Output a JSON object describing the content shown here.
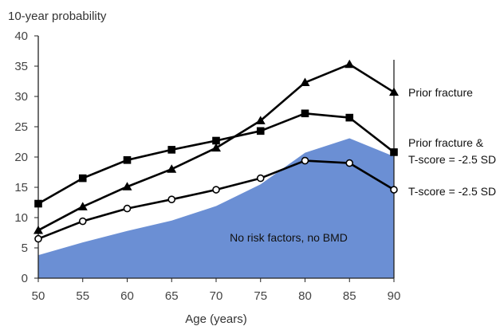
{
  "chart_data": {
    "type": "line",
    "title": "",
    "ylabel": "10-year probability",
    "xlabel": "Age (years)",
    "x": [
      50,
      55,
      60,
      65,
      70,
      75,
      80,
      85,
      90
    ],
    "xlim": [
      50,
      90
    ],
    "ylim": [
      0,
      40
    ],
    "xticks": [
      50,
      55,
      60,
      65,
      70,
      75,
      80,
      85,
      90
    ],
    "yticks": [
      0,
      5,
      10,
      15,
      20,
      25,
      30,
      35,
      40
    ],
    "grid": false,
    "series": [
      {
        "name": "No risk factors, no BMD",
        "kind": "area",
        "color": "#6b8fd4",
        "values": [
          3.8,
          5.9,
          7.8,
          9.5,
          11.9,
          15.5,
          20.7,
          23.1,
          20.1
        ]
      },
      {
        "name": "Prior fracture",
        "kind": "line",
        "marker": "filled-triangle",
        "color": "#000000",
        "values": [
          7.9,
          11.8,
          15.1,
          18.0,
          21.5,
          26.0,
          32.3,
          35.3,
          30.7
        ]
      },
      {
        "name": "Prior fracture & T-score = -2.5 SD",
        "label_lines": [
          "Prior fracture &",
          "T-score = -2.5 SD"
        ],
        "kind": "line",
        "marker": "filled-square",
        "color": "#000000",
        "values": [
          12.3,
          16.5,
          19.5,
          21.2,
          22.7,
          24.3,
          27.2,
          26.5,
          20.8
        ]
      },
      {
        "name": "T-score = -2.5 SD",
        "kind": "line",
        "marker": "open-circle",
        "color": "#000000",
        "values": [
          6.5,
          9.4,
          11.5,
          13.0,
          14.6,
          16.5,
          19.4,
          19.0,
          14.6
        ]
      }
    ]
  }
}
